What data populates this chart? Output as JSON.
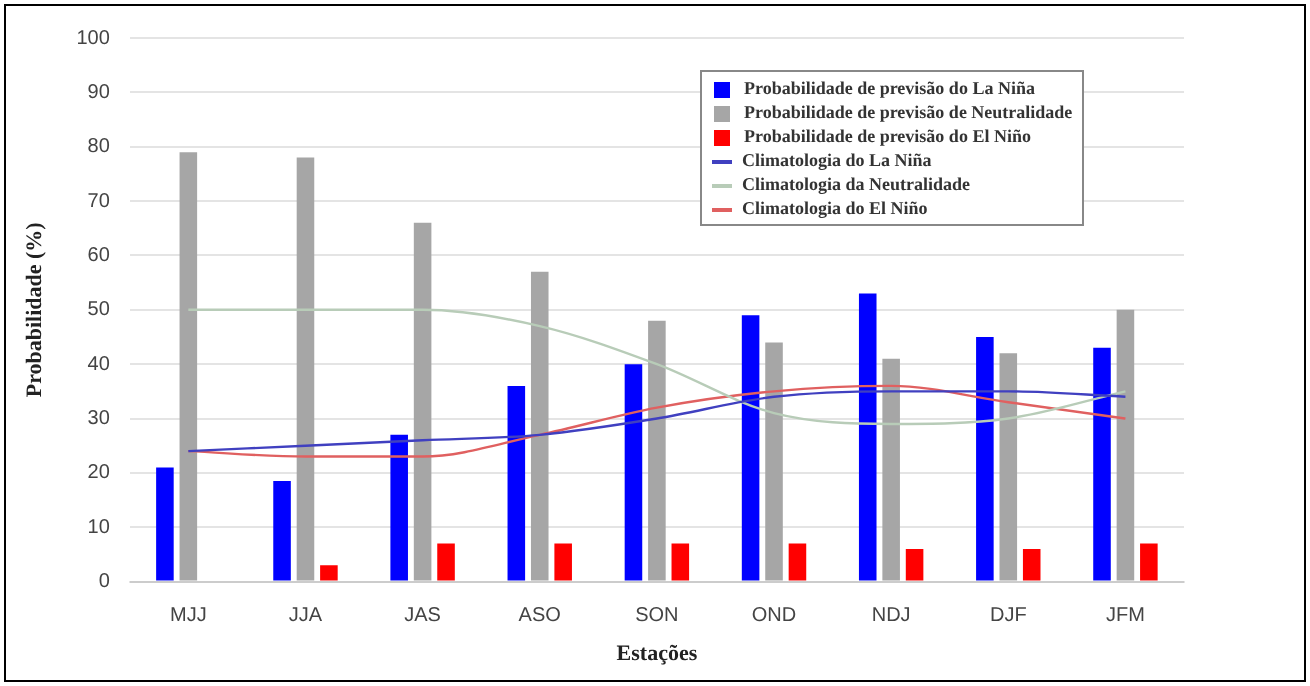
{
  "chart_data": {
    "type": "bar",
    "xlabel": "Estações",
    "ylabel": "Probabilidade (%)",
    "categories": [
      "MJJ",
      "JJA",
      "JAS",
      "ASO",
      "SON",
      "OND",
      "NDJ",
      "DJF",
      "JFM"
    ],
    "series": [
      {
        "name": "Probabilidade de previsão do La Niña",
        "color": "#0000ff",
        "values": [
          21,
          18.5,
          27,
          36,
          40,
          49,
          53,
          45,
          43
        ]
      },
      {
        "name": "Probabilidade de previsão de Neutralidade",
        "color": "#a6a6a6",
        "values": [
          79,
          78,
          66,
          57,
          48,
          44,
          41,
          42,
          50
        ]
      },
      {
        "name": "Probabilidade de previsão do El Niño",
        "color": "#ff0000",
        "values": [
          0,
          3,
          7,
          7,
          7,
          7,
          6,
          6,
          7
        ]
      },
      {
        "name": "Climatologia do La Niña",
        "type": "line",
        "color": "#4040c0",
        "values": [
          24,
          25,
          26,
          27,
          30,
          34,
          35,
          35,
          34
        ]
      },
      {
        "name": "Climatologia da Neutralidade",
        "type": "line",
        "color": "#b8ccb8",
        "values": [
          50,
          50,
          50,
          47,
          40,
          31,
          29,
          30,
          35
        ]
      },
      {
        "name": "Climatologia do El Niño",
        "type": "line",
        "color": "#e06060",
        "values": [
          24,
          23,
          23,
          27,
          32,
          35,
          36,
          33,
          30
        ]
      }
    ],
    "ylim": [
      0,
      100
    ],
    "yticks": [
      0,
      10,
      20,
      30,
      40,
      50,
      60,
      70,
      80,
      90,
      100
    ],
    "grid": "y",
    "legend": "top right",
    "marker": "none"
  }
}
